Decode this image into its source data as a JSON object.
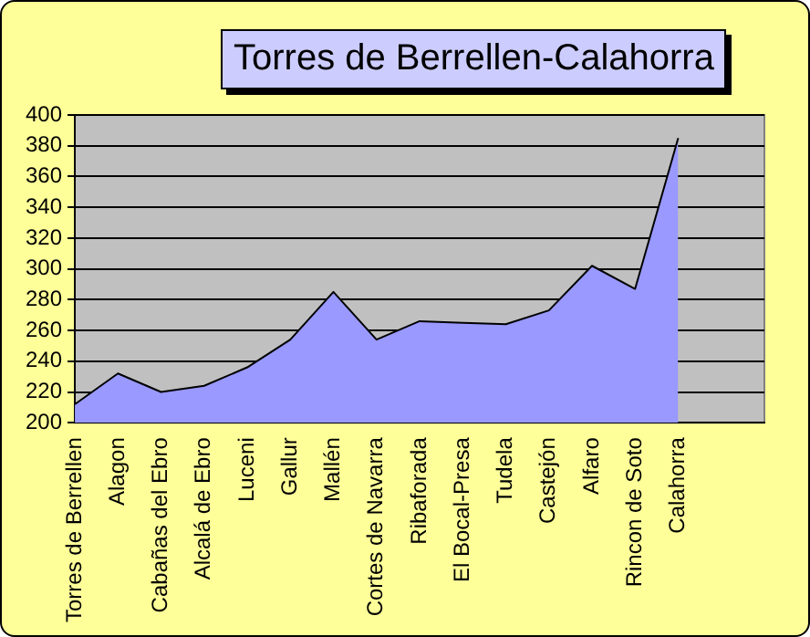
{
  "chart_data": {
    "type": "area",
    "title": "Torres de Berrellen-Calahorra",
    "categories": [
      "Torres de Berrellen",
      "Alagon",
      "Cabañas del Ebro",
      "Alcalá de Ebro",
      "Luceni",
      "Gallur",
      "Mallén",
      "Cortes de Navarra",
      "Ribaforada",
      "El Bocal-Presa",
      "Tudela",
      "Castejón",
      "Alfaro",
      "Rincon de Soto",
      "Calahorra",
      null,
      null
    ],
    "series": [
      {
        "color": "#9999ff",
        "values": [
          212,
          232,
          220,
          224,
          236,
          254,
          285,
          254,
          266,
          265,
          264,
          273,
          302,
          287,
          385,
          null,
          null
        ]
      }
    ],
    "ylim": [
      200,
      400
    ],
    "yticks": [
      200,
      220,
      240,
      260,
      280,
      300,
      320,
      340,
      360,
      380,
      400
    ],
    "grid": "y",
    "legend": false
  }
}
